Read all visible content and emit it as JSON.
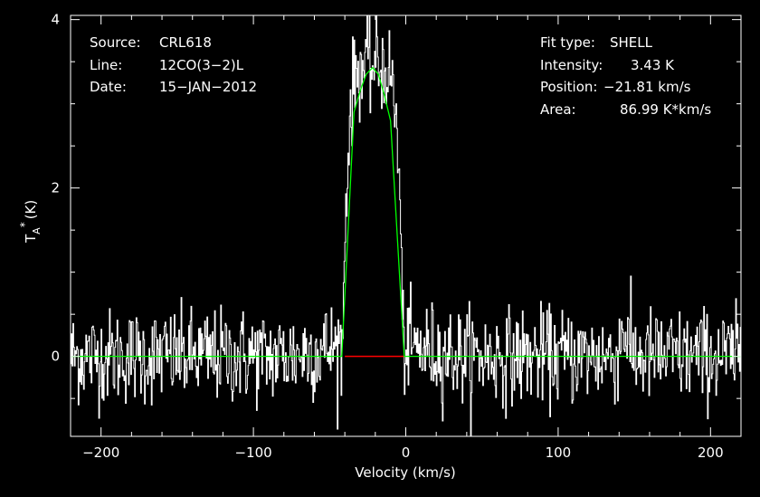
{
  "chart_data": {
    "type": "line",
    "xlabel": "Velocity (km/s)",
    "ylabel": "T",
    "ylabel_sub": "A",
    "ylabel_sup": "*",
    "ylabel_unit": "(K)",
    "xlim": [
      -220,
      220
    ],
    "ylim": [
      -0.95,
      4.05
    ],
    "xticks": [
      -200,
      -100,
      0,
      100,
      200
    ],
    "yticks": [
      0,
      2,
      4
    ],
    "grid": false,
    "info_left": [
      {
        "key": "Source:",
        "value": "CRL618"
      },
      {
        "key": "Line:",
        "value": "12CO(3−2)L"
      },
      {
        "key": "Date:",
        "value": "15−JAN−2012"
      }
    ],
    "info_right": [
      {
        "key": "Fit type:",
        "value": "SHELL"
      },
      {
        "key": "Intensity:",
        "value": "3.43 K"
      },
      {
        "key": "Position:",
        "value": "−21.81 km/s"
      },
      {
        "key": "Area:",
        "value": "86.99 K*km/s"
      }
    ],
    "fit": {
      "type": "SHELL",
      "intensity": 3.43,
      "position": -21.81,
      "area": 86.99,
      "x": [
        -220,
        -42,
        -34,
        -30,
        -26,
        -21.8,
        -18,
        -14,
        -10,
        -1,
        220
      ],
      "y": [
        0,
        0,
        2.9,
        3.15,
        3.35,
        3.43,
        3.35,
        3.1,
        2.8,
        0,
        0
      ]
    },
    "baseline_window": {
      "x": [
        -40,
        -1
      ],
      "y": 0
    },
    "spectrum": {
      "x_start": -220,
      "x_end": 220,
      "step": 0.5,
      "noise_rms": 0.28,
      "peak": 3.45,
      "peak_center": -21.8,
      "peak_halfwidth": 20,
      "feature_center": 143,
      "feature_height": 0.35
    },
    "colors": {
      "background": "#000000",
      "axes": "#ffffff",
      "spectrum": "#ffffff",
      "fit": "#00ff00",
      "baseline": "#ff0000"
    }
  }
}
